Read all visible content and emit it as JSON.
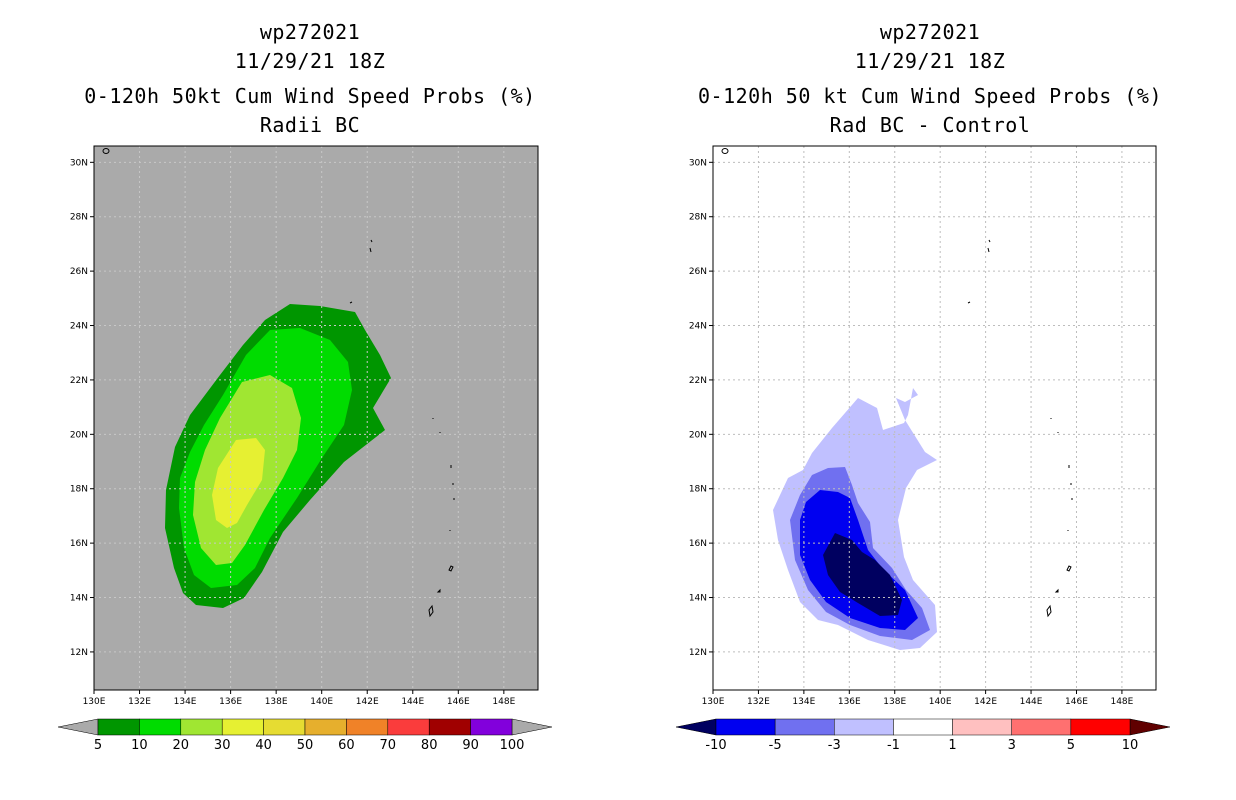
{
  "left_panel": {
    "storm_id": "wp272021",
    "datetime": "11/29/21 18Z",
    "product": "0-120h 50kt Cum Wind Speed Probs (%)",
    "subtitle": "Radii BC",
    "background_color": "#aaaaaa",
    "colorbar": {
      "labels": [
        "5",
        "10",
        "20",
        "30",
        "40",
        "50",
        "60",
        "70",
        "80",
        "90",
        "100"
      ],
      "colors": [
        "#009600",
        "#00dc00",
        "#a0e632",
        "#e6f032",
        "#e6dc32",
        "#e6af2d",
        "#f08228",
        "#fa3c3c",
        "#a00000",
        "#8200dc"
      ],
      "under_color": "#aaaaaa",
      "over_color": "#aaaaaa"
    },
    "contours": [
      {
        "level": "5",
        "color": "#009600"
      },
      {
        "level": "10",
        "color": "#00dc00"
      },
      {
        "level": "20",
        "color": "#a0e632"
      },
      {
        "level": "30",
        "color": "#e6f032"
      }
    ]
  },
  "right_panel": {
    "storm_id": "wp272021",
    "datetime": "11/29/21 18Z",
    "product": "0-120h 50 kt Cum Wind Speed Probs (%)",
    "subtitle": "Rad BC - Control",
    "background_color": "#ffffff",
    "colorbar": {
      "labels": [
        "-10",
        "-5",
        "-3",
        "-1",
        "1",
        "3",
        "5",
        "10"
      ],
      "colors": [
        "#0000f0",
        "#7070f0",
        "#c0c0ff",
        "#ffffff",
        "#ffc0c0",
        "#ff7070",
        "#ff0000"
      ],
      "under_color": "#000060",
      "over_color": "#600000"
    },
    "contours": [
      {
        "level": "-1",
        "color": "#c0c0ff"
      },
      {
        "level": "-3",
        "color": "#7070f0"
      },
      {
        "level": "-5",
        "color": "#0000f0"
      },
      {
        "level": "-10",
        "color": "#000060"
      }
    ]
  },
  "map": {
    "lon_labels": [
      "130E",
      "132E",
      "134E",
      "136E",
      "138E",
      "140E",
      "142E",
      "144E",
      "146E",
      "148E"
    ],
    "lat_labels": [
      "12N",
      "14N",
      "16N",
      "18N",
      "20N",
      "22N",
      "24N",
      "26N",
      "28N",
      "30N"
    ],
    "lon_range": [
      130,
      149.5
    ],
    "lat_range": [
      10.6,
      30.6
    ]
  }
}
